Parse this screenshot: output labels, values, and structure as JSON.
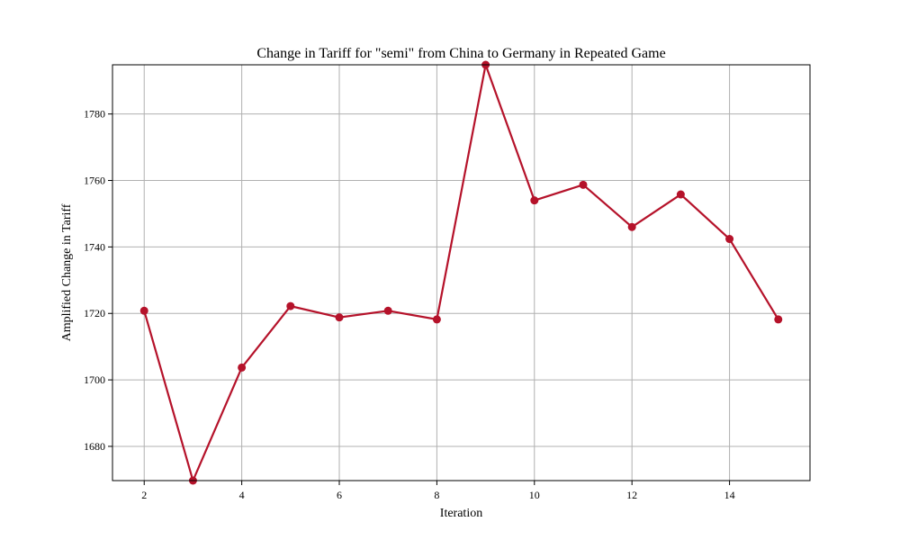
{
  "chart_data": {
    "type": "line",
    "title": "Change in Tariff for \"semi\" from China to Germany in Repeated Game",
    "xlabel": "Iteration",
    "ylabel": "Amplified Change in Tariff",
    "x": [
      2,
      3,
      4,
      5,
      6,
      7,
      8,
      9,
      10,
      11,
      12,
      13,
      14,
      15
    ],
    "series": [
      {
        "values": [
          1720.8,
          1669.7,
          1703.7,
          1722.2,
          1718.8,
          1720.8,
          1718.2,
          1794.8,
          1754.0,
          1758.7,
          1746.0,
          1755.8,
          1742.4,
          1718.2
        ]
      }
    ],
    "xlim": [
      1.35,
      15.65
    ],
    "ylim": [
      1669.7,
      1794.8
    ],
    "xticks": [
      2,
      4,
      6,
      8,
      10,
      12,
      14
    ],
    "yticks": [
      1680,
      1700,
      1720,
      1740,
      1760,
      1780
    ],
    "grid": true,
    "line_color": "#b5122a",
    "marker": "circle"
  }
}
